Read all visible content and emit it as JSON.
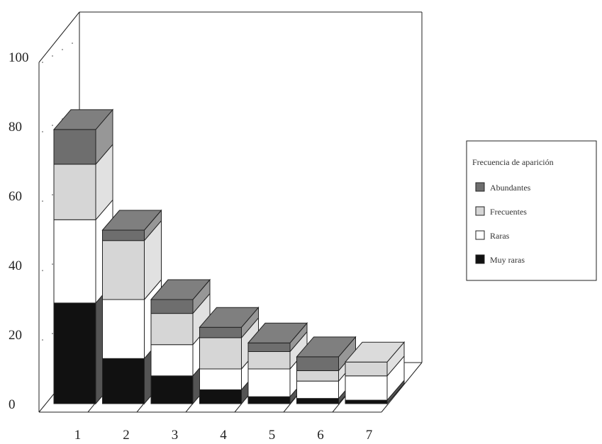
{
  "chart_data": {
    "type": "bar",
    "stacked": true,
    "three_d": true,
    "categories": [
      "1",
      "2",
      "3",
      "4",
      "5",
      "6",
      "7"
    ],
    "ylim": [
      0,
      100
    ],
    "yticks": [
      "0",
      "20",
      "40",
      "60",
      "80",
      "100"
    ],
    "xticks": [
      "1",
      "2",
      "3",
      "4",
      "5",
      "6",
      "7"
    ],
    "legend": {
      "title": "Frecuencia de aparición",
      "position": "right"
    },
    "series": [
      {
        "name": "Muy raras",
        "color": "#111111",
        "values": [
          29,
          13,
          8,
          4,
          2,
          1.5,
          1
        ]
      },
      {
        "name": "Raras",
        "color": "#ffffff",
        "values": [
          24,
          17,
          9,
          6,
          8,
          5,
          7
        ]
      },
      {
        "name": "Frecuentes",
        "color": "#d6d6d6",
        "values": [
          16,
          17,
          9,
          9,
          5,
          3,
          4
        ]
      },
      {
        "name": "Abundantes",
        "color": "#6e6e6e",
        "values": [
          10,
          3,
          4,
          3,
          2.5,
          4,
          0
        ]
      }
    ]
  }
}
